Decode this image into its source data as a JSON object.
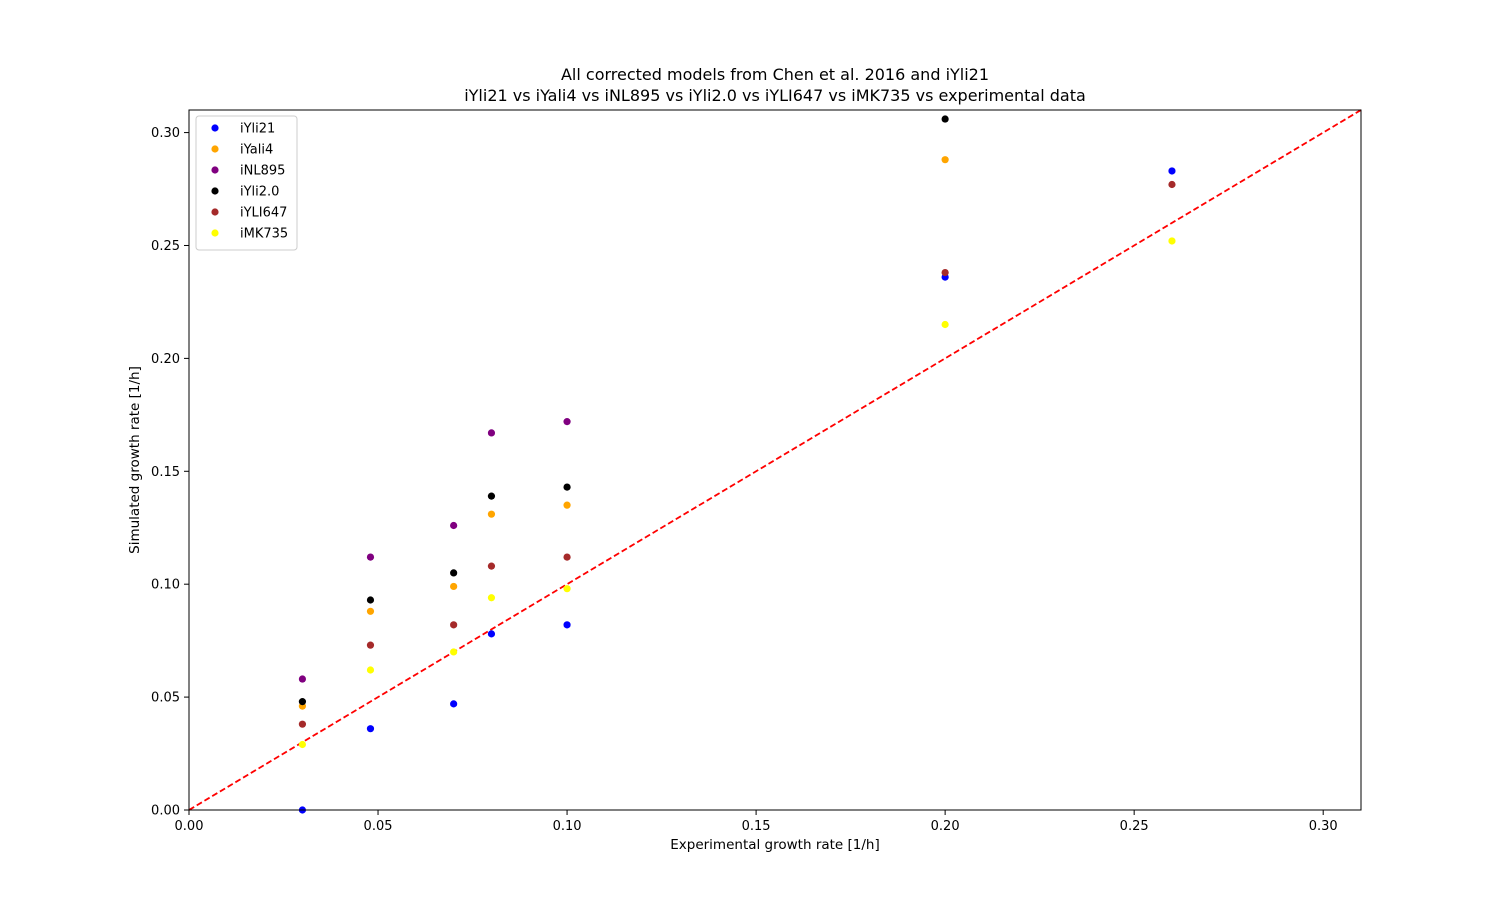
{
  "chart_data": {
    "type": "scatter",
    "title": "All corrected models from Chen et al. 2016 and iYli21",
    "subtitle": "iYli21 vs iYali4 vs iNL895 vs iYli2.0 vs iYLI647 vs iMK735 vs experimental data",
    "xlabel": "Experimental growth rate [1/h]",
    "ylabel": "Simulated growth rate [1/h]",
    "xlim": [
      0,
      0.31
    ],
    "ylim": [
      0,
      0.31
    ],
    "xticks": [
      "0.00",
      "0.05",
      "0.10",
      "0.15",
      "0.20",
      "0.25",
      "0.30"
    ],
    "yticks": [
      "0.00",
      "0.05",
      "0.10",
      "0.15",
      "0.20",
      "0.25",
      "0.30"
    ],
    "grid": false,
    "legend_position": "top-left",
    "reference_line": {
      "style": "dashed",
      "color": "#ff0000",
      "from": [
        0,
        0
      ],
      "to": [
        0.31,
        0.31
      ]
    },
    "x": [
      0.03,
      0.048,
      0.07,
      0.08,
      0.1,
      0.2,
      0.26
    ],
    "series": [
      {
        "name": "iYli21",
        "color": "#0000ff",
        "points": [
          [
            0.03,
            0.0
          ],
          [
            0.048,
            0.036
          ],
          [
            0.07,
            0.047
          ],
          [
            0.08,
            0.078
          ],
          [
            0.1,
            0.082
          ],
          [
            0.2,
            0.236
          ],
          [
            0.26,
            0.283
          ]
        ]
      },
      {
        "name": "iYali4",
        "color": "#ffa500",
        "points": [
          [
            0.03,
            0.046
          ],
          [
            0.048,
            0.088
          ],
          [
            0.07,
            0.099
          ],
          [
            0.08,
            0.131
          ],
          [
            0.1,
            0.135
          ],
          [
            0.2,
            0.288
          ]
        ]
      },
      {
        "name": "iNL895",
        "color": "#800080",
        "points": [
          [
            0.03,
            0.058
          ],
          [
            0.048,
            0.112
          ],
          [
            0.07,
            0.126
          ],
          [
            0.08,
            0.167
          ],
          [
            0.1,
            0.172
          ]
        ]
      },
      {
        "name": "iYli2.0",
        "color": "#000000",
        "points": [
          [
            0.03,
            0.048
          ],
          [
            0.048,
            0.093
          ],
          [
            0.07,
            0.105
          ],
          [
            0.08,
            0.139
          ],
          [
            0.1,
            0.143
          ],
          [
            0.2,
            0.306
          ]
        ]
      },
      {
        "name": "iYLI647",
        "color": "#a52a2a",
        "points": [
          [
            0.03,
            0.038
          ],
          [
            0.048,
            0.073
          ],
          [
            0.07,
            0.082
          ],
          [
            0.08,
            0.108
          ],
          [
            0.1,
            0.112
          ],
          [
            0.2,
            0.238
          ],
          [
            0.26,
            0.277
          ]
        ]
      },
      {
        "name": "iMK735",
        "color": "#ffff00",
        "points": [
          [
            0.03,
            0.029
          ],
          [
            0.048,
            0.062
          ],
          [
            0.07,
            0.07
          ],
          [
            0.08,
            0.094
          ],
          [
            0.1,
            0.098
          ],
          [
            0.2,
            0.215
          ],
          [
            0.26,
            0.252
          ]
        ]
      }
    ]
  }
}
